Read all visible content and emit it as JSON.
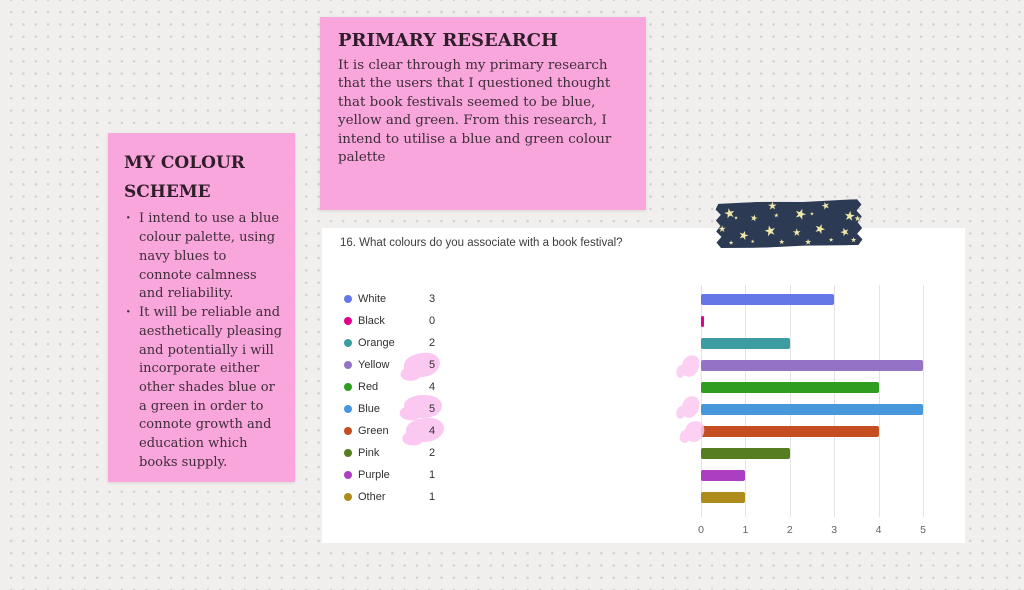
{
  "notes": {
    "colour_scheme": {
      "title": "MY COLOUR SCHEME",
      "bullets": [
        "I intend to use a blue colour palette, using navy blues to connote calmness and reliability.",
        "It will be reliable and aesthetically pleasing and potentially i will incorporate either other shades blue or a green in order to connote growth and education which books supply."
      ],
      "bg_color": "#F8A6DB"
    },
    "primary_research": {
      "title": "PRIMARY RESEARCH",
      "body": "It is clear through my primary research that the users that I questioned thought that book festivals seemed to be blue, yellow and green. From this research, I intend to utilise a blue and green colour palette",
      "bg_color": "#F8A6DB"
    }
  },
  "survey": {
    "question": "16. What colours do you associate with a book festival?"
  },
  "chart_data": {
    "type": "bar",
    "orientation": "horizontal",
    "title": "16. What colours do you associate with a book festival?",
    "categories": [
      "White",
      "Black",
      "Orange",
      "Yellow",
      "Red",
      "Blue",
      "Green",
      "Pink",
      "Purple",
      "Other"
    ],
    "values": [
      3,
      0,
      2,
      5,
      4,
      5,
      4,
      2,
      1,
      1
    ],
    "bar_colors": [
      "#6577E5",
      "#E3008C",
      "#3D9CA2",
      "#9472C6",
      "#2E9D20",
      "#4697DB",
      "#C44E22",
      "#567D22",
      "#AC3EC1",
      "#AD8C1C"
    ],
    "highlighted_categories": [
      "Yellow",
      "Blue",
      "Green"
    ],
    "xlim": [
      0,
      5
    ],
    "x_ticks": [
      "0",
      "1",
      "2",
      "3",
      "4",
      "5"
    ],
    "grid": true,
    "legend_position": "left"
  },
  "decorations": {
    "washi_tape": {
      "color": "#2d3a54",
      "star_color": "#efe9a5",
      "star_glyph": "★"
    },
    "highlighter_color": "#fbc8f1"
  }
}
